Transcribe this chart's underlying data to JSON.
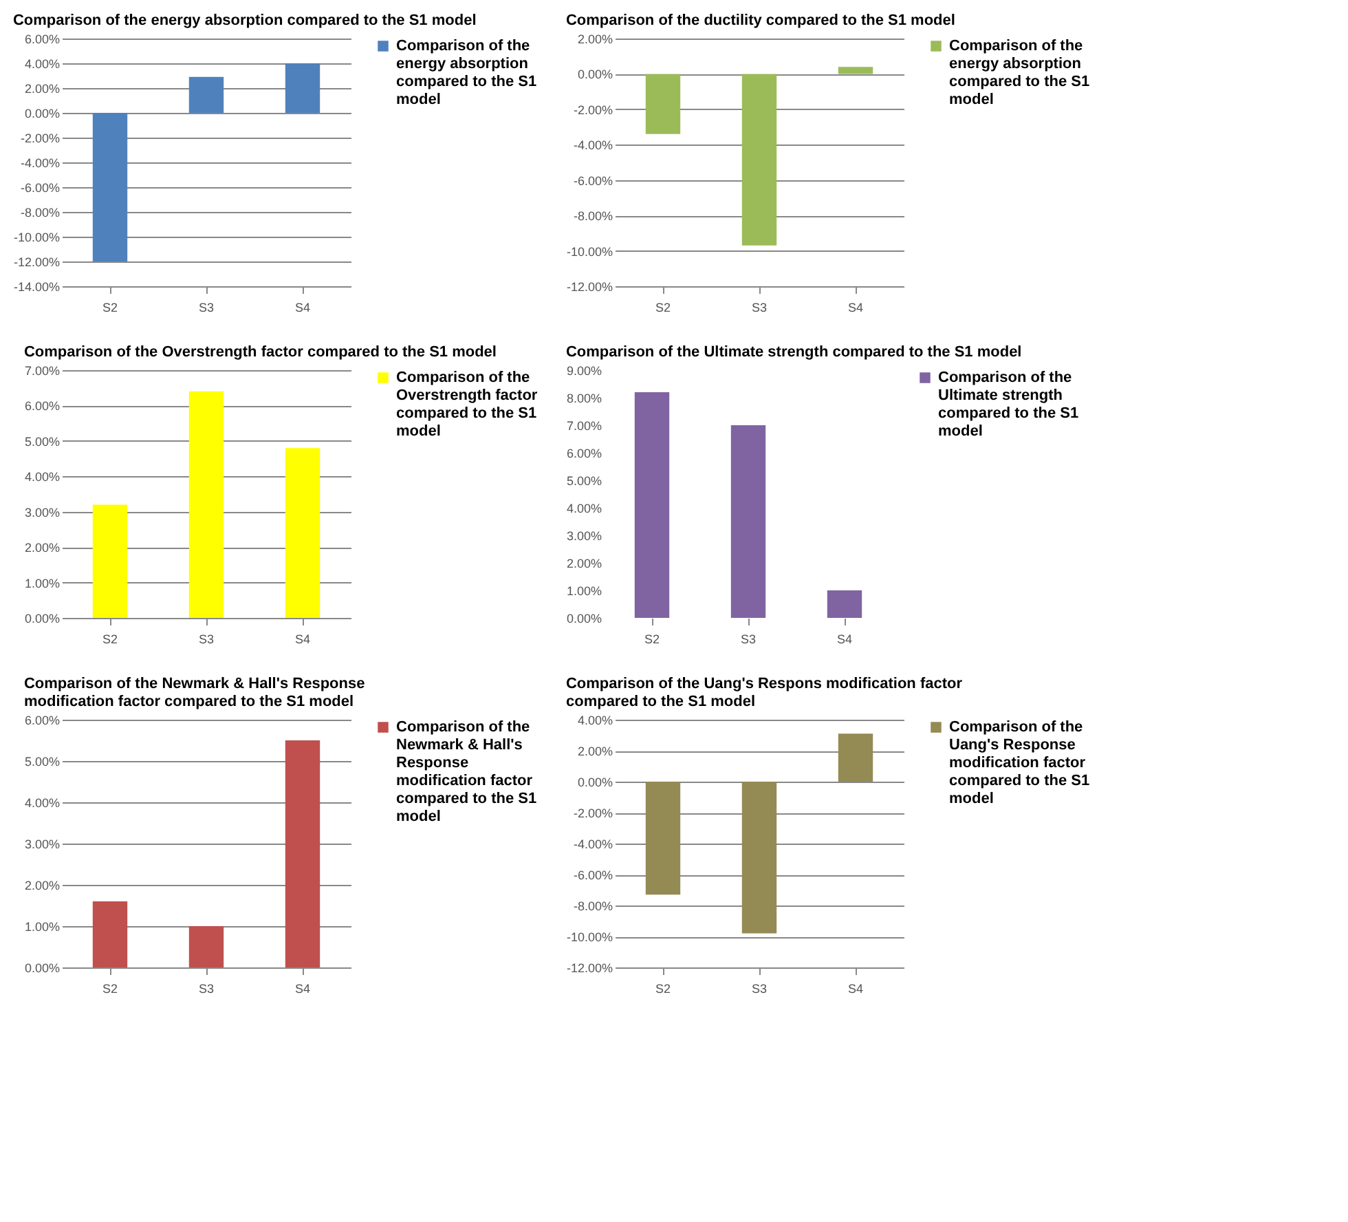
{
  "chart_data": [
    {
      "type": "bar",
      "title": "Comparison of the energy absorption compared to the S1 model",
      "categories": [
        "S2",
        "S3",
        "S4"
      ],
      "series": [
        {
          "name": "Comparison of the energy absorption compared to the S1 model",
          "color": "#4f81bd",
          "values": [
            -12,
            2.9,
            4.0
          ]
        }
      ],
      "ylim": [
        -14,
        6
      ],
      "yticks": [
        {
          "value": 6,
          "label": "6.00%"
        },
        {
          "value": 4,
          "label": "4.00%"
        },
        {
          "value": 2,
          "label": "2.00%"
        },
        {
          "value": 0,
          "label": "0.00%"
        },
        {
          "value": -2,
          "label": "-2.00%"
        },
        {
          "value": -4,
          "label": "-4.00%"
        },
        {
          "value": -6,
          "label": "-6.00%"
        },
        {
          "value": -8,
          "label": "-8.00%"
        },
        {
          "value": -10,
          "label": "-10.00%"
        },
        {
          "value": -12,
          "label": "-12.00%"
        },
        {
          "value": -14,
          "label": "-14.00%"
        }
      ],
      "grid": "y",
      "legend": "right"
    },
    {
      "type": "bar",
      "title": "Comparison of the ductility compared to the S1 model",
      "categories": [
        "S2",
        "S3",
        "S4"
      ],
      "series": [
        {
          "name": "Comparison of the energy absorption compared to the S1 model",
          "color": "#9bbb59",
          "values": [
            -3.4,
            -9.7,
            0.4
          ]
        }
      ],
      "ylim": [
        -12,
        2
      ],
      "yticks": [
        {
          "value": 2,
          "label": "2.00%"
        },
        {
          "value": 0,
          "label": "0.00%"
        },
        {
          "value": -2,
          "label": "-2.00%"
        },
        {
          "value": -4,
          "label": "-4.00%"
        },
        {
          "value": -6,
          "label": "-6.00%"
        },
        {
          "value": -8,
          "label": "-8.00%"
        },
        {
          "value": -10,
          "label": "-10.00%"
        },
        {
          "value": -12,
          "label": "-12.00%"
        }
      ],
      "grid": "y",
      "legend": "right"
    },
    {
      "type": "bar",
      "title": "Comparison of the Overstrength factor compared to the S1 model",
      "categories": [
        "S2",
        "S3",
        "S4"
      ],
      "series": [
        {
          "name": "Comparison of the Overstrength factor compared to the S1 model",
          "color": "#ffff00",
          "values": [
            3.2,
            6.4,
            4.8
          ]
        }
      ],
      "ylim": [
        0,
        7
      ],
      "yticks": [
        {
          "value": 7,
          "label": "7.00%"
        },
        {
          "value": 6,
          "label": "6.00%"
        },
        {
          "value": 5,
          "label": "5.00%"
        },
        {
          "value": 4,
          "label": "4.00%"
        },
        {
          "value": 3,
          "label": "3.00%"
        },
        {
          "value": 2,
          "label": "2.00%"
        },
        {
          "value": 1,
          "label": "1.00%"
        },
        {
          "value": 0,
          "label": "0.00%"
        }
      ],
      "grid": "y",
      "legend": "right"
    },
    {
      "type": "bar",
      "title": "Comparison of the Ultimate strength compared to the S1 model",
      "categories": [
        "S2",
        "S3",
        "S4"
      ],
      "series": [
        {
          "name": "Comparison of the Ultimate strength compared to the S1 model",
          "color": "#8064a2",
          "values": [
            8.2,
            7.0,
            1.0
          ]
        }
      ],
      "ylim": [
        0,
        9
      ],
      "yticks": [
        {
          "value": 9,
          "label": "9.00%"
        },
        {
          "value": 8,
          "label": "8.00%"
        },
        {
          "value": 7,
          "label": "7.00%"
        },
        {
          "value": 6,
          "label": "6.00%"
        },
        {
          "value": 5,
          "label": "5.00%"
        },
        {
          "value": 4,
          "label": "4.00%"
        },
        {
          "value": 3,
          "label": "3.00%"
        },
        {
          "value": 2,
          "label": "2.00%"
        },
        {
          "value": 1,
          "label": "1.00%"
        },
        {
          "value": 0,
          "label": "0.00%"
        }
      ],
      "legend": "right"
    },
    {
      "type": "bar",
      "title": "Comparison of the Newmark & Hall's Response modification factor compared to the S1 model",
      "categories": [
        "S2",
        "S3",
        "S4"
      ],
      "series": [
        {
          "name": "Comparison of the Newmark & Hall's Response modification factor compared to the S1 model",
          "color": "#c0504d",
          "values": [
            1.6,
            1.0,
            5.5
          ]
        }
      ],
      "ylim": [
        0,
        6
      ],
      "yticks": [
        {
          "value": 6,
          "label": "6.00%"
        },
        {
          "value": 5,
          "label": "5.00%"
        },
        {
          "value": 4,
          "label": "4.00%"
        },
        {
          "value": 3,
          "label": "3.00%"
        },
        {
          "value": 2,
          "label": "2.00%"
        },
        {
          "value": 1,
          "label": "1.00%"
        },
        {
          "value": 0,
          "label": "0.00%"
        }
      ],
      "grid": "y",
      "legend": "right"
    },
    {
      "type": "bar",
      "title": "Comparison of the Uang's Respons modification factor compared to the S1 model",
      "categories": [
        "S2",
        "S3",
        "S4"
      ],
      "series": [
        {
          "name": "Comparison of the Uang's Response modification factor compared to the S1 model",
          "color": "#948a54",
          "values": [
            -7.3,
            -9.8,
            3.1
          ]
        }
      ],
      "ylim": [
        -12,
        4
      ],
      "yticks": [
        {
          "value": 4,
          "label": "4.00%"
        },
        {
          "value": 2,
          "label": "2.00%"
        },
        {
          "value": 0,
          "label": "0.00%"
        },
        {
          "value": -2,
          "label": "-2.00%"
        },
        {
          "value": -4,
          "label": "-4.00%"
        },
        {
          "value": -6,
          "label": "-6.00%"
        },
        {
          "value": -8,
          "label": "-8.00%"
        },
        {
          "value": -10,
          "label": "-10.00%"
        },
        {
          "value": -12,
          "label": "-12.00%"
        }
      ],
      "grid": "y",
      "legend": "right"
    }
  ]
}
